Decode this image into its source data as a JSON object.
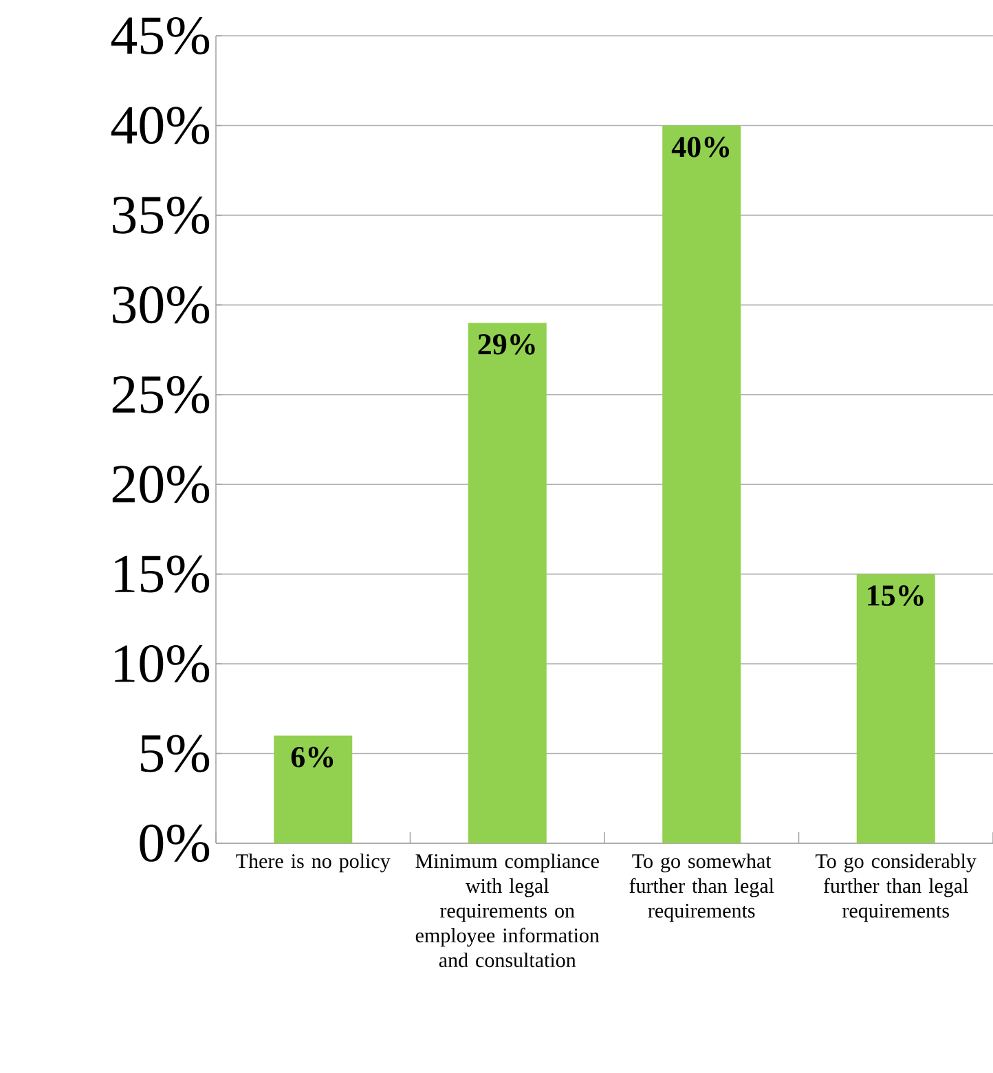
{
  "chart_data": {
    "type": "bar",
    "categories": [
      "There is no policy",
      "Minimum compliance with legal requirements on employee information and consultation",
      "To go somewhat further than legal requirements",
      "To go considerably further than legal requirements"
    ],
    "values": [
      6,
      29,
      40,
      15
    ],
    "value_labels": [
      "6%",
      "29%",
      "40%",
      "15%"
    ],
    "color": "#92d050",
    "ylim": [
      0,
      45
    ],
    "yticks": [
      {
        "value": 0,
        "label": "0%"
      },
      {
        "value": 5,
        "label": "5%"
      },
      {
        "value": 10,
        "label": "10%"
      },
      {
        "value": 15,
        "label": "15%"
      },
      {
        "value": 20,
        "label": "20%"
      },
      {
        "value": 25,
        "label": "25%"
      },
      {
        "value": 30,
        "label": "30%"
      },
      {
        "value": 35,
        "label": "35%"
      },
      {
        "value": 40,
        "label": "40%"
      },
      {
        "value": 45,
        "label": "45%"
      }
    ],
    "grid": "y"
  }
}
